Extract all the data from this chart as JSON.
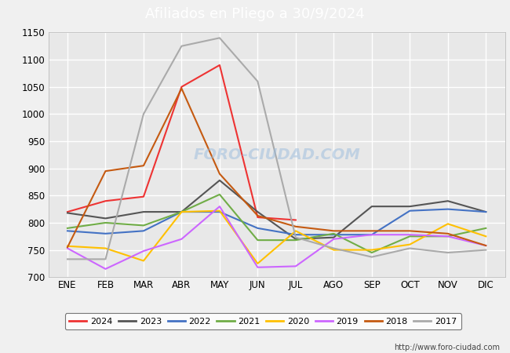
{
  "title": "Afiliados en Pliego a 30/9/2024",
  "months": [
    "ENE",
    "FEB",
    "MAR",
    "ABR",
    "MAY",
    "JUN",
    "JUL",
    "AGO",
    "SEP",
    "OCT",
    "NOV",
    "DIC"
  ],
  "ylim": [
    700,
    1150
  ],
  "yticks": [
    700,
    750,
    800,
    850,
    900,
    950,
    1000,
    1050,
    1100,
    1150
  ],
  "series_order": [
    "2024",
    "2023",
    "2022",
    "2021",
    "2020",
    "2019",
    "2018",
    "2017"
  ],
  "series": {
    "2024": {
      "color": "#ee3333",
      "data": [
        820,
        840,
        848,
        1050,
        1090,
        810,
        805,
        null,
        null,
        null,
        null,
        null
      ]
    },
    "2023": {
      "color": "#555555",
      "data": [
        818,
        808,
        820,
        820,
        878,
        820,
        770,
        773,
        830,
        830,
        840,
        820
      ]
    },
    "2022": {
      "color": "#4472c4",
      "data": [
        785,
        780,
        785,
        820,
        820,
        790,
        778,
        778,
        778,
        822,
        825,
        820
      ]
    },
    "2021": {
      "color": "#70ad47",
      "data": [
        790,
        800,
        795,
        820,
        852,
        768,
        768,
        780,
        745,
        775,
        775,
        790
      ]
    },
    "2020": {
      "color": "#ffc000",
      "data": [
        757,
        753,
        730,
        820,
        822,
        725,
        785,
        750,
        750,
        760,
        798,
        775
      ]
    },
    "2019": {
      "color": "#cc66ff",
      "data": [
        753,
        715,
        748,
        770,
        830,
        718,
        720,
        770,
        778,
        778,
        775,
        758
      ]
    },
    "2018": {
      "color": "#c55a11",
      "data": [
        755,
        895,
        905,
        1047,
        890,
        813,
        793,
        785,
        785,
        785,
        780,
        758
      ]
    },
    "2017": {
      "color": "#aaaaaa",
      "data": [
        733,
        733,
        1000,
        1125,
        1140,
        1060,
        773,
        753,
        737,
        753,
        745,
        750
      ]
    }
  },
  "watermark": "FORO-CIUDAD.COM",
  "url": "http://www.foro-ciudad.com",
  "title_bg": "#4f86c6",
  "plot_bg": "#e8e8e8",
  "fig_bg": "#f0f0f0",
  "grid_color": "#ffffff",
  "title_fontsize": 13,
  "tick_fontsize": 8.5,
  "legend_fontsize": 8,
  "url_fontsize": 7
}
